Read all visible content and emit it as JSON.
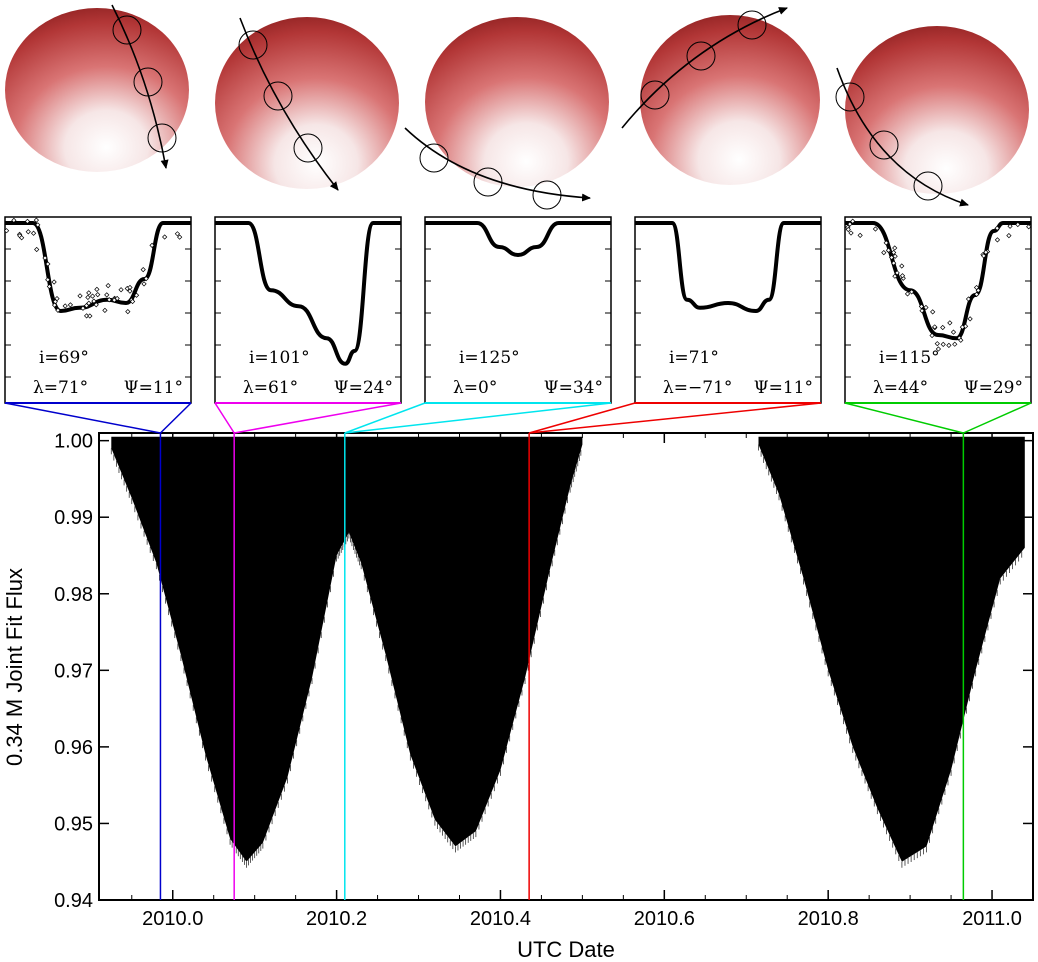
{
  "chart_data": {
    "type": "line",
    "title": "",
    "xlabel": "UTC Date",
    "ylabel": "0.34 M  Joint Fit Flux",
    "xlim": [
      2009.91,
      2011.05
    ],
    "ylim": [
      0.94,
      1.001
    ],
    "xticks": [
      "2010.0",
      "2010.2",
      "2010.4",
      "2010.6",
      "2010.8",
      "2011.0"
    ],
    "xtick_values": [
      2010.0,
      2010.2,
      2010.4,
      2010.6,
      2010.8,
      2011.0
    ],
    "yticks": [
      "1.00",
      "0.99",
      "0.98",
      "0.97",
      "0.96",
      "0.95",
      "0.94"
    ],
    "ytick_values": [
      1.0,
      0.99,
      0.98,
      0.97,
      0.96,
      0.95,
      0.94
    ],
    "series": [
      {
        "color": "#000000",
        "description": "Dense transit light curve; envelope of minimum flux per epoch",
        "envelope": [
          {
            "x": 2009.925,
            "y": 0.999
          },
          {
            "x": 2009.95,
            "y": 0.9925
          },
          {
            "x": 2009.98,
            "y": 0.984
          },
          {
            "x": 2010.01,
            "y": 0.972
          },
          {
            "x": 2010.04,
            "y": 0.959
          },
          {
            "x": 2010.07,
            "y": 0.948
          },
          {
            "x": 2010.09,
            "y": 0.945
          },
          {
            "x": 2010.11,
            "y": 0.9475
          },
          {
            "x": 2010.14,
            "y": 0.956
          },
          {
            "x": 2010.17,
            "y": 0.969
          },
          {
            "x": 2010.2,
            "y": 0.985
          },
          {
            "x": 2010.215,
            "y": 0.988
          },
          {
            "x": 2010.23,
            "y": 0.984
          },
          {
            "x": 2010.26,
            "y": 0.972
          },
          {
            "x": 2010.29,
            "y": 0.959
          },
          {
            "x": 2010.32,
            "y": 0.9505
          },
          {
            "x": 2010.345,
            "y": 0.947
          },
          {
            "x": 2010.37,
            "y": 0.949
          },
          {
            "x": 2010.4,
            "y": 0.957
          },
          {
            "x": 2010.43,
            "y": 0.969
          },
          {
            "x": 2010.46,
            "y": 0.983
          },
          {
            "x": 2010.485,
            "y": 0.994
          },
          {
            "x": 2010.5,
            "y": 0.9995
          },
          {
            "x": 2010.715,
            "y": 0.9995
          },
          {
            "x": 2010.74,
            "y": 0.993
          },
          {
            "x": 2010.77,
            "y": 0.982
          },
          {
            "x": 2010.8,
            "y": 0.97
          },
          {
            "x": 2010.83,
            "y": 0.96
          },
          {
            "x": 2010.86,
            "y": 0.952
          },
          {
            "x": 2010.89,
            "y": 0.945
          },
          {
            "x": 2010.92,
            "y": 0.947
          },
          {
            "x": 2010.95,
            "y": 0.957
          },
          {
            "x": 2010.98,
            "y": 0.97
          },
          {
            "x": 2011.01,
            "y": 0.982
          },
          {
            "x": 2011.04,
            "y": 0.986
          }
        ]
      }
    ],
    "insets": [
      {
        "epoch": 2009.985,
        "color": "#0000cc",
        "i": "i=69°",
        "lambda": "λ=71°",
        "psi": "Ψ=11°",
        "has_points": true,
        "profile": [
          [
            0,
            0
          ],
          [
            0.15,
            0
          ],
          [
            0.3,
            0.55
          ],
          [
            0.4,
            0.53
          ],
          [
            0.55,
            0.48
          ],
          [
            0.65,
            0.5
          ],
          [
            0.75,
            0.35
          ],
          [
            0.85,
            0
          ],
          [
            1,
            0
          ]
        ]
      },
      {
        "epoch": 2010.075,
        "color": "#ee00ee",
        "i": "i=101°",
        "lambda": "λ=61°",
        "psi": "Ψ=24°",
        "has_points": false,
        "profile": [
          [
            0,
            0
          ],
          [
            0.18,
            0
          ],
          [
            0.3,
            0.42
          ],
          [
            0.45,
            0.52
          ],
          [
            0.6,
            0.72
          ],
          [
            0.7,
            0.88
          ],
          [
            0.75,
            0.8
          ],
          [
            0.85,
            0
          ],
          [
            1,
            0
          ]
        ]
      },
      {
        "epoch": 2010.21,
        "color": "#00e5ee",
        "i": "i=125°",
        "lambda": "λ=0°",
        "psi": "Ψ=34°",
        "has_points": false,
        "profile": [
          [
            0,
            0
          ],
          [
            0.28,
            0
          ],
          [
            0.4,
            0.15
          ],
          [
            0.5,
            0.2
          ],
          [
            0.6,
            0.15
          ],
          [
            0.72,
            0
          ],
          [
            1,
            0
          ]
        ]
      },
      {
        "epoch": 2010.435,
        "color": "#ee0000",
        "i": "i=71°",
        "lambda": "λ=−71°",
        "psi": "Ψ=11°",
        "has_points": false,
        "profile": [
          [
            0,
            0
          ],
          [
            0.2,
            0
          ],
          [
            0.28,
            0.48
          ],
          [
            0.35,
            0.53
          ],
          [
            0.5,
            0.5
          ],
          [
            0.65,
            0.55
          ],
          [
            0.72,
            0.48
          ],
          [
            0.8,
            0
          ],
          [
            1,
            0
          ]
        ]
      },
      {
        "epoch": 2010.965,
        "color": "#00cc00",
        "i": "i=115°",
        "lambda": "λ=44°",
        "psi": "Ψ=29°",
        "has_points": true,
        "profile": [
          [
            0,
            0
          ],
          [
            0.15,
            0
          ],
          [
            0.35,
            0.42
          ],
          [
            0.5,
            0.7
          ],
          [
            0.6,
            0.72
          ],
          [
            0.7,
            0.45
          ],
          [
            0.8,
            0.05
          ],
          [
            0.85,
            0
          ],
          [
            1,
            0
          ]
        ]
      }
    ]
  }
}
